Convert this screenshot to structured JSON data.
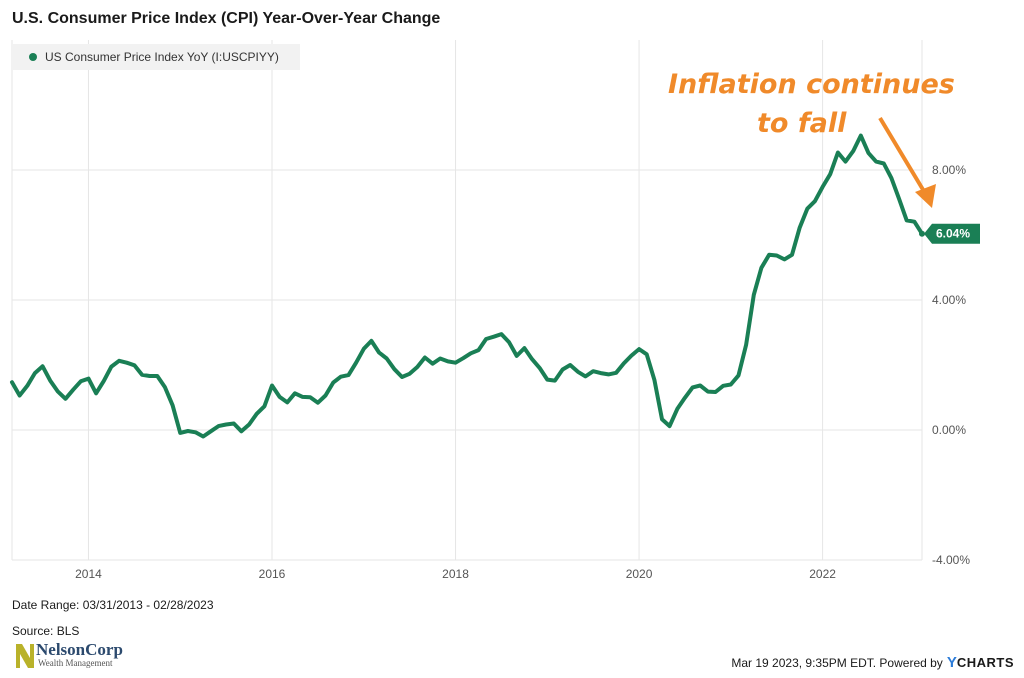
{
  "title": "U.S. Consumer Price Index (CPI) Year-Over-Year Change",
  "legend_label": "US Consumer Price Index YoY (I:USCPIYY)",
  "annotation": {
    "line1": "Inflation continues",
    "line2": "to fall"
  },
  "last_value_label": "6.04%",
  "date_range": "Date Range: 03/31/2013 - 02/28/2023",
  "source": "Source: BLS",
  "logo": {
    "name": "NelsonCorp",
    "sub": "Wealth Management"
  },
  "credit": {
    "text": "Mar 19 2023, 9:35PM EDT. Powered by",
    "brand_y": "Y",
    "brand_rest": "CHARTS"
  },
  "colors": {
    "line": "#1a7f55",
    "accent": "#f08a2a",
    "grid": "#e6e6e6"
  },
  "chart_data": {
    "type": "line",
    "title": "U.S. Consumer Price Index (CPI) Year-Over-Year Change",
    "xlabel": "",
    "ylabel": "",
    "x_tick_labels": [
      "2014",
      "2016",
      "2018",
      "2020",
      "2022"
    ],
    "y_tick_labels": [
      "-4.00%",
      "0.00%",
      "4.00%",
      "8.00%"
    ],
    "y_ticks": [
      -4,
      0,
      4,
      8
    ],
    "ylim": [
      -4,
      12
    ],
    "xlim": [
      "2013-03-31",
      "2023-02-28"
    ],
    "grid": true,
    "legend_position": "top-left",
    "series": [
      {
        "name": "US Consumer Price Index YoY (I:USCPIYY)",
        "points": [
          [
            "2013-03",
            1.47
          ],
          [
            "2013-04",
            1.06
          ],
          [
            "2013-05",
            1.36
          ],
          [
            "2013-06",
            1.75
          ],
          [
            "2013-07",
            1.96
          ],
          [
            "2013-08",
            1.52
          ],
          [
            "2013-09",
            1.18
          ],
          [
            "2013-10",
            0.96
          ],
          [
            "2013-11",
            1.24
          ],
          [
            "2013-12",
            1.5
          ],
          [
            "2014-01",
            1.58
          ],
          [
            "2014-02",
            1.13
          ],
          [
            "2014-03",
            1.51
          ],
          [
            "2014-04",
            1.95
          ],
          [
            "2014-05",
            2.13
          ],
          [
            "2014-06",
            2.07
          ],
          [
            "2014-07",
            1.99
          ],
          [
            "2014-08",
            1.7
          ],
          [
            "2014-09",
            1.66
          ],
          [
            "2014-10",
            1.66
          ],
          [
            "2014-11",
            1.32
          ],
          [
            "2014-12",
            0.76
          ],
          [
            "2015-01",
            -0.09
          ],
          [
            "2015-02",
            -0.03
          ],
          [
            "2015-03",
            -0.07
          ],
          [
            "2015-04",
            -0.2
          ],
          [
            "2015-05",
            -0.04
          ],
          [
            "2015-06",
            0.12
          ],
          [
            "2015-07",
            0.17
          ],
          [
            "2015-08",
            0.2
          ],
          [
            "2015-09",
            -0.04
          ],
          [
            "2015-10",
            0.17
          ],
          [
            "2015-11",
            0.5
          ],
          [
            "2015-12",
            0.73
          ],
          [
            "2016-01",
            1.37
          ],
          [
            "2016-02",
            1.02
          ],
          [
            "2016-03",
            0.85
          ],
          [
            "2016-04",
            1.13
          ],
          [
            "2016-05",
            1.02
          ],
          [
            "2016-06",
            1.01
          ],
          [
            "2016-07",
            0.84
          ],
          [
            "2016-08",
            1.06
          ],
          [
            "2016-09",
            1.46
          ],
          [
            "2016-10",
            1.64
          ],
          [
            "2016-11",
            1.69
          ],
          [
            "2016-12",
            2.07
          ],
          [
            "2017-01",
            2.5
          ],
          [
            "2017-02",
            2.74
          ],
          [
            "2017-03",
            2.38
          ],
          [
            "2017-04",
            2.2
          ],
          [
            "2017-05",
            1.87
          ],
          [
            "2017-06",
            1.63
          ],
          [
            "2017-07",
            1.73
          ],
          [
            "2017-08",
            1.94
          ],
          [
            "2017-09",
            2.23
          ],
          [
            "2017-10",
            2.04
          ],
          [
            "2017-11",
            2.2
          ],
          [
            "2017-12",
            2.11
          ],
          [
            "2018-01",
            2.07
          ],
          [
            "2018-02",
            2.21
          ],
          [
            "2018-03",
            2.36
          ],
          [
            "2018-04",
            2.46
          ],
          [
            "2018-05",
            2.8
          ],
          [
            "2018-06",
            2.87
          ],
          [
            "2018-07",
            2.95
          ],
          [
            "2018-08",
            2.7
          ],
          [
            "2018-09",
            2.28
          ],
          [
            "2018-10",
            2.52
          ],
          [
            "2018-11",
            2.18
          ],
          [
            "2018-12",
            1.91
          ],
          [
            "2019-01",
            1.55
          ],
          [
            "2019-02",
            1.52
          ],
          [
            "2019-03",
            1.86
          ],
          [
            "2019-04",
            2.0
          ],
          [
            "2019-05",
            1.79
          ],
          [
            "2019-06",
            1.65
          ],
          [
            "2019-07",
            1.81
          ],
          [
            "2019-08",
            1.75
          ],
          [
            "2019-09",
            1.71
          ],
          [
            "2019-10",
            1.76
          ],
          [
            "2019-11",
            2.05
          ],
          [
            "2019-12",
            2.29
          ],
          [
            "2020-01",
            2.49
          ],
          [
            "2020-02",
            2.33
          ],
          [
            "2020-03",
            1.54
          ],
          [
            "2020-04",
            0.33
          ],
          [
            "2020-05",
            0.12
          ],
          [
            "2020-06",
            0.65
          ],
          [
            "2020-07",
            0.99
          ],
          [
            "2020-08",
            1.31
          ],
          [
            "2020-09",
            1.37
          ],
          [
            "2020-10",
            1.18
          ],
          [
            "2020-11",
            1.17
          ],
          [
            "2020-12",
            1.36
          ],
          [
            "2021-01",
            1.4
          ],
          [
            "2021-02",
            1.68
          ],
          [
            "2021-03",
            2.62
          ],
          [
            "2021-04",
            4.16
          ],
          [
            "2021-05",
            4.99
          ],
          [
            "2021-06",
            5.39
          ],
          [
            "2021-07",
            5.37
          ],
          [
            "2021-08",
            5.25
          ],
          [
            "2021-09",
            5.39
          ],
          [
            "2021-10",
            6.22
          ],
          [
            "2021-11",
            6.81
          ],
          [
            "2021-12",
            7.04
          ],
          [
            "2022-01",
            7.48
          ],
          [
            "2022-02",
            7.87
          ],
          [
            "2022-03",
            8.54
          ],
          [
            "2022-04",
            8.26
          ],
          [
            "2022-05",
            8.58
          ],
          [
            "2022-06",
            9.06
          ],
          [
            "2022-07",
            8.52
          ],
          [
            "2022-08",
            8.26
          ],
          [
            "2022-09",
            8.2
          ],
          [
            "2022-10",
            7.75
          ],
          [
            "2022-11",
            7.11
          ],
          [
            "2022-12",
            6.45
          ],
          [
            "2023-01",
            6.41
          ],
          [
            "2023-02",
            6.04
          ]
        ]
      }
    ]
  }
}
